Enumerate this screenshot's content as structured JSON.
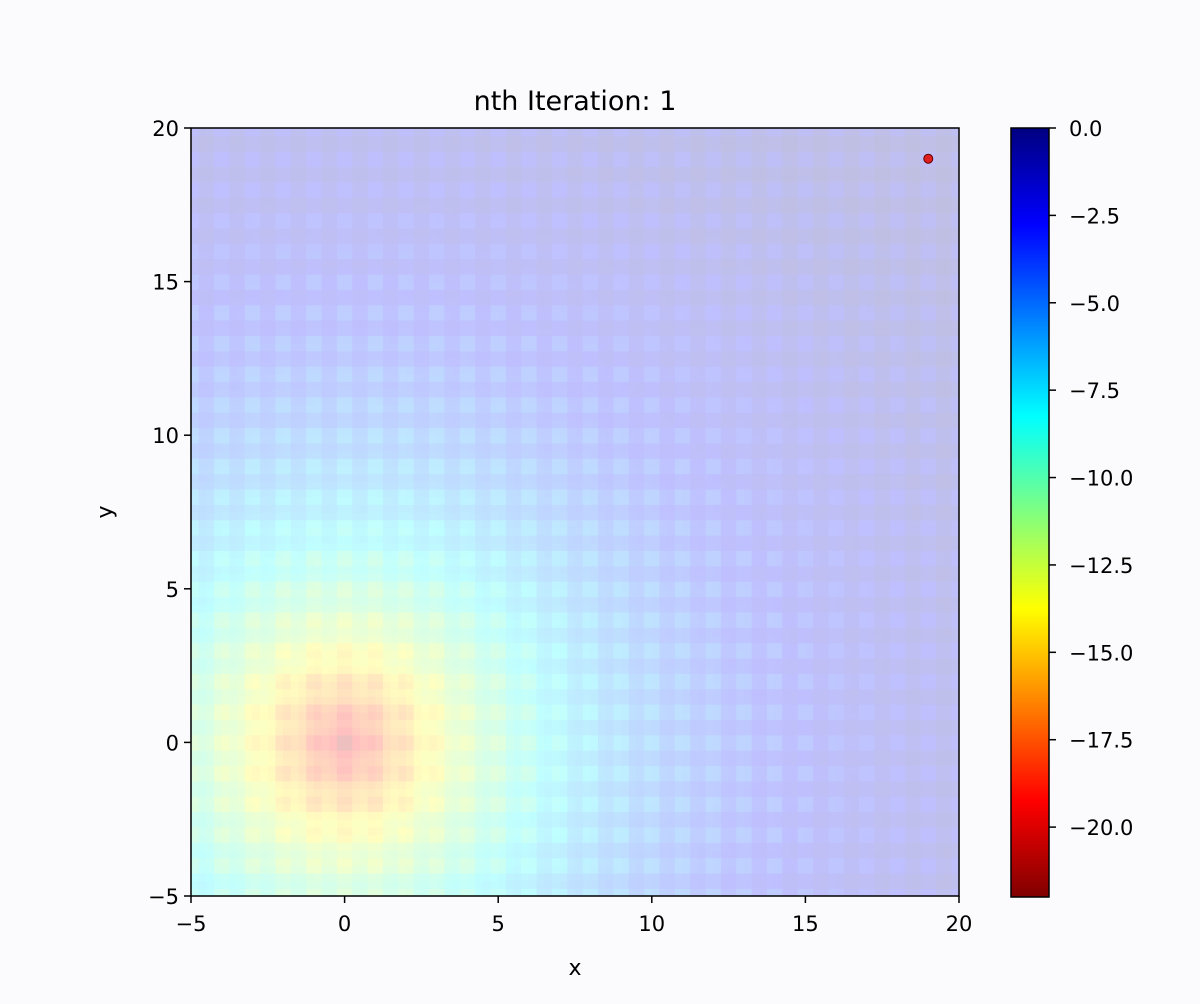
{
  "chart_data": {
    "type": "heatmap",
    "title": "nth Iteration: 1",
    "xlabel": "x",
    "ylabel": "y",
    "xlim": [
      -5,
      20
    ],
    "ylim": [
      -5,
      20
    ],
    "x_ticks": [
      -5,
      0,
      5,
      10,
      15,
      20
    ],
    "y_ticks": [
      -5,
      0,
      5,
      10,
      15,
      20
    ],
    "x_tick_labels": [
      "−5",
      "0",
      "5",
      "10",
      "15",
      "20"
    ],
    "y_tick_labels": [
      "−5",
      "0",
      "5",
      "10",
      "15",
      "20"
    ],
    "grid": false,
    "surface": {
      "x_range": [
        -5,
        20
      ],
      "y_range": [
        -5,
        20
      ],
      "minimum_at": [
        0,
        0
      ],
      "minimum_value": -22,
      "plateau_value": 0,
      "colormap": "jet",
      "alpha": 0.25
    },
    "markers": [
      {
        "x": 19,
        "y": 19,
        "color": "#e02020"
      }
    ],
    "colorbar": {
      "range": [
        -22,
        0
      ],
      "ticks": [
        0,
        -2.5,
        -5,
        -7.5,
        -10,
        -12.5,
        -15,
        -17.5,
        -20
      ],
      "tick_labels": [
        "0.0",
        "−2.5",
        "−5.0",
        "−7.5",
        "−10.0",
        "−12.5",
        "−15.0",
        "−17.5",
        "−20.0"
      ],
      "colormap": "jet",
      "colormap_stops": [
        "#800000",
        "#ff0000",
        "#ff8000",
        "#ffff00",
        "#80ff80",
        "#00ffff",
        "#0080ff",
        "#0000ff",
        "#000080"
      ]
    }
  }
}
